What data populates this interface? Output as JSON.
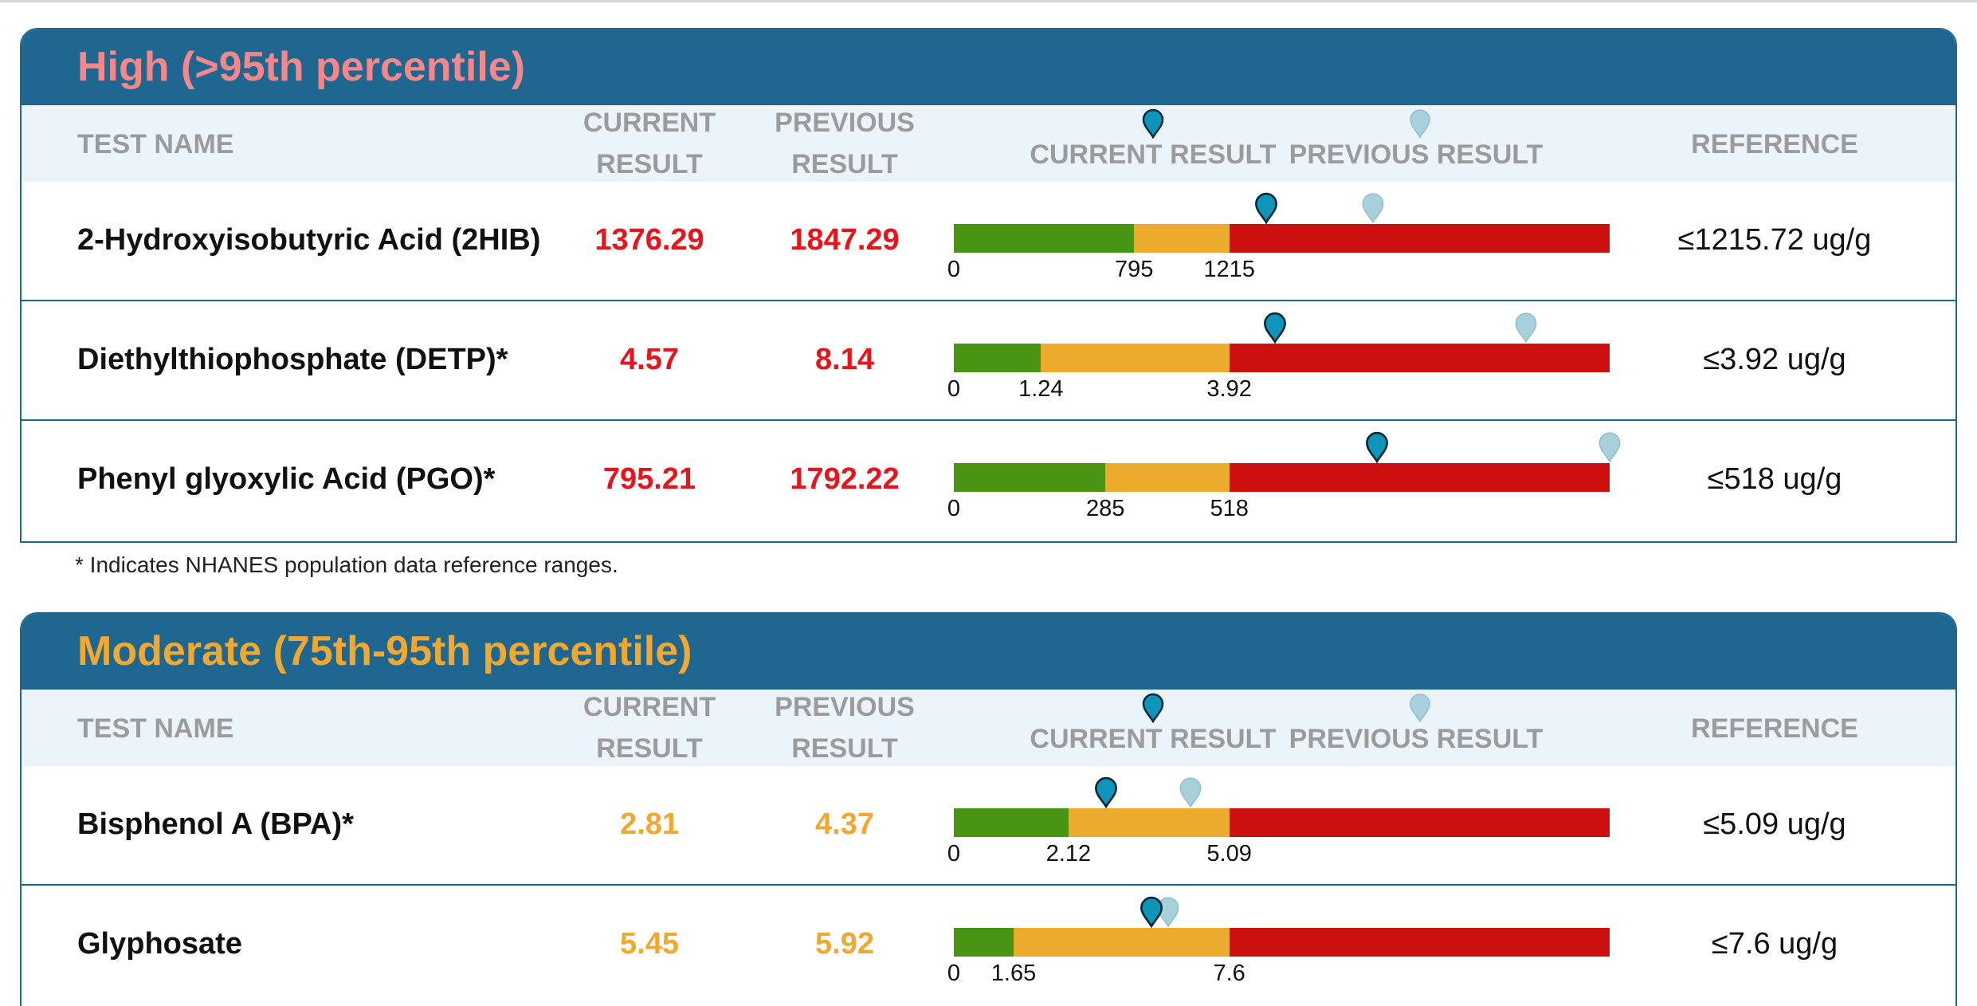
{
  "colors": {
    "header_bg": "#1f6690",
    "subheader_bg": "#ebf4fb",
    "high_title": "#f2888a",
    "moderate_title": "#f0a830",
    "high_value": "#e8141c",
    "moderate_value": "#f0a830",
    "bar_green": "#4a9413",
    "bar_yellow": "#edab2e",
    "bar_red": "#cc0f0f",
    "marker_current": "#0f95b9",
    "marker_previous": "#a7d0db"
  },
  "headers": {
    "test_name": "TEST NAME",
    "current_line1": "CURRENT",
    "current_line2": "RESULT",
    "previous_line1": "PREVIOUS",
    "previous_line2": "RESULT",
    "legend_current": "CURRENT RESULT",
    "legend_previous": "PREVIOUS RESULT",
    "reference": "REFERENCE"
  },
  "sections": [
    {
      "title": "High (>95th percentile)",
      "rows": [
        {
          "name": "2-Hydroxyisobutyric Acid (2HIB)",
          "current": "1376.29",
          "previous": "1847.29",
          "reference": "≤1215.72 ug/g",
          "ticks": [
            "0",
            "795",
            "1215"
          ],
          "zones": [
            0,
            795,
            1215
          ],
          "current_value": 1376.29,
          "previous_value": 1847.29
        },
        {
          "name": "Diethylthiophosphate (DETP)*",
          "current": "4.57",
          "previous": "8.14",
          "reference": "≤3.92 ug/g",
          "ticks": [
            "0",
            "1.24",
            "3.92"
          ],
          "zones": [
            0,
            1.24,
            3.92
          ],
          "current_value": 4.57,
          "previous_value": 8.14
        },
        {
          "name": "Phenyl glyoxylic Acid (PGO)*",
          "current": "795.21",
          "previous": "1792.22",
          "reference": "≤518 ug/g",
          "ticks": [
            "0",
            "285",
            "518"
          ],
          "zones": [
            0,
            285,
            518
          ],
          "current_value": 795.21,
          "previous_value": 1792.22
        }
      ]
    },
    {
      "title": "Moderate (75th-95th percentile)",
      "rows": [
        {
          "name": "Bisphenol A (BPA)*",
          "current": "2.81",
          "previous": "4.37",
          "reference": "≤5.09 ug/g",
          "ticks": [
            "0",
            "2.12",
            "5.09"
          ],
          "zones": [
            0,
            2.12,
            5.09
          ],
          "current_value": 2.81,
          "previous_value": 4.37
        },
        {
          "name": "Glyphosate",
          "current": "5.45",
          "previous": "5.92",
          "reference": "≤7.6 ug/g",
          "ticks": [
            "0",
            "1.65",
            "7.6"
          ],
          "zones": [
            0,
            1.65,
            7.6
          ],
          "current_value": 5.45,
          "previous_value": 5.92
        }
      ]
    }
  ],
  "footnote": "* Indicates NHANES population data reference ranges."
}
